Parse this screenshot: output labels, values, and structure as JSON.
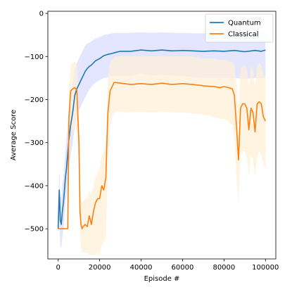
{
  "chart_data": {
    "type": "line",
    "title": "",
    "xlabel": "Episode #",
    "ylabel": "Average Score",
    "xlim": [
      -5000,
      105000
    ],
    "ylim": [
      -570,
      5
    ],
    "xticks": [
      0,
      20000,
      40000,
      60000,
      80000,
      100000
    ],
    "yticks": [
      0,
      -100,
      -200,
      -300,
      -400,
      -500
    ],
    "xtick_labels": [
      "0",
      "20000",
      "40000",
      "60000",
      "80000",
      "100000"
    ],
    "ytick_labels": [
      "0",
      "−100",
      "−200",
      "−300",
      "−400",
      "−500"
    ],
    "grid": false,
    "legend_position": "top-right",
    "series": [
      {
        "name": "Quantum",
        "color": "#1f77b4",
        "band_color": "#d9dcff",
        "x": [
          0,
          500,
          1000,
          1500,
          2000,
          2500,
          3000,
          3500,
          4000,
          5000,
          6000,
          7000,
          8000,
          9000,
          10000,
          11000,
          12000,
          13000,
          14000,
          15000,
          16000,
          18000,
          20000,
          22000,
          24000,
          26000,
          28000,
          30000,
          35000,
          40000,
          45000,
          50000,
          55000,
          60000,
          65000,
          70000,
          75000,
          80000,
          85000,
          90000,
          95000,
          98000,
          100000
        ],
        "y": [
          -500,
          -410,
          -480,
          -490,
          -460,
          -440,
          -410,
          -380,
          -360,
          -300,
          -260,
          -230,
          -190,
          -175,
          -165,
          -155,
          -145,
          -135,
          -128,
          -123,
          -120,
          -110,
          -105,
          -98,
          -95,
          -93,
          -90,
          -88,
          -88,
          -85,
          -87,
          -85,
          -87,
          -86,
          -87,
          -88,
          -87,
          -88,
          -86,
          -89,
          -86,
          -88,
          -85
        ],
        "lower": [
          -500,
          -480,
          -540,
          -545,
          -520,
          -500,
          -470,
          -440,
          -420,
          -370,
          -330,
          -300,
          -260,
          -240,
          -225,
          -215,
          -205,
          -195,
          -185,
          -178,
          -170,
          -160,
          -155,
          -150,
          -148,
          -145,
          -145,
          -145,
          -145,
          -140,
          -145,
          -142,
          -145,
          -145,
          -148,
          -150,
          -150,
          -150,
          -150,
          -152,
          -150,
          -150,
          -150
        ],
        "upper": [
          -500,
          -360,
          -420,
          -430,
          -400,
          -380,
          -350,
          -320,
          -290,
          -230,
          -190,
          -160,
          -130,
          -115,
          -105,
          -95,
          -85,
          -75,
          -70,
          -68,
          -65,
          -58,
          -55,
          -50,
          -48,
          -46,
          -45,
          -45,
          -45,
          -44,
          -45,
          -44,
          -45,
          -45,
          -46,
          -46,
          -46,
          -46,
          -46,
          -47,
          -46,
          -46,
          -46
        ]
      },
      {
        "name": "Classical",
        "color": "#ff7f0e",
        "band_color": "#fff0d6",
        "x": [
          0,
          2000,
          4000,
          4600,
          5200,
          6000,
          7000,
          8000,
          9000,
          10000,
          10500,
          11000,
          11500,
          12000,
          13000,
          14000,
          15000,
          16000,
          17000,
          18000,
          19000,
          20000,
          21000,
          22000,
          23000,
          23500,
          24000,
          25000,
          27000,
          30000,
          35000,
          40000,
          45000,
          50000,
          55000,
          60000,
          65000,
          70000,
          75000,
          78000,
          80000,
          82000,
          84000,
          85000,
          86000,
          87000,
          88000,
          89000,
          90000,
          91000,
          92000,
          93000,
          94000,
          95000,
          96000,
          97000,
          98000,
          99000,
          100000
        ],
        "y": [
          -500,
          -500,
          -500,
          -500,
          -240,
          -180,
          -175,
          -172,
          -178,
          -300,
          -460,
          -490,
          -500,
          -495,
          -490,
          -495,
          -470,
          -490,
          -460,
          -440,
          -430,
          -430,
          -400,
          -410,
          -380,
          -300,
          -230,
          -180,
          -160,
          -162,
          -165,
          -163,
          -165,
          -162,
          -165,
          -163,
          -165,
          -168,
          -170,
          -172,
          -170,
          -172,
          -175,
          -190,
          -260,
          -340,
          -220,
          -210,
          -210,
          -220,
          -270,
          -220,
          -230,
          -275,
          -210,
          -205,
          -210,
          -240,
          -250
        ],
        "lower": [
          -500,
          -500,
          -500,
          -500,
          -330,
          -280,
          -270,
          -265,
          -275,
          -360,
          -520,
          -540,
          -555,
          -555,
          -555,
          -555,
          -560,
          -560,
          -560,
          -560,
          -560,
          -560,
          -540,
          -530,
          -520,
          -450,
          -350,
          -260,
          -230,
          -228,
          -230,
          -228,
          -230,
          -228,
          -230,
          -230,
          -232,
          -235,
          -240,
          -245,
          -245,
          -250,
          -260,
          -290,
          -380,
          -440,
          -330,
          -320,
          -320,
          -330,
          -380,
          -330,
          -340,
          -380,
          -330,
          -320,
          -330,
          -350,
          -360
        ],
        "upper": [
          -500,
          -500,
          -500,
          -500,
          -170,
          -120,
          -115,
          -112,
          -118,
          -230,
          -400,
          -430,
          -440,
          -435,
          -430,
          -430,
          -410,
          -420,
          -400,
          -380,
          -370,
          -360,
          -330,
          -320,
          -290,
          -210,
          -150,
          -115,
          -100,
          -100,
          -100,
          -100,
          -100,
          -100,
          -100,
          -100,
          -100,
          -105,
          -105,
          -108,
          -108,
          -110,
          -112,
          -120,
          -160,
          -230,
          -130,
          -120,
          -120,
          -130,
          -170,
          -120,
          -130,
          -170,
          -120,
          -115,
          -120,
          -140,
          -150
        ]
      }
    ]
  }
}
